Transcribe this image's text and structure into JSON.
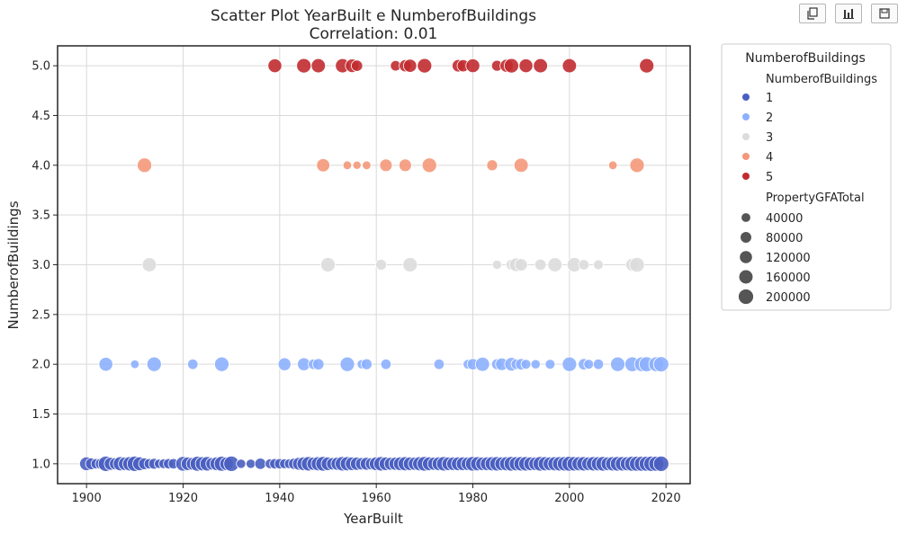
{
  "toolbar": {
    "buttons": [
      {
        "name": "copy-icon"
      },
      {
        "name": "bar-chart-icon"
      },
      {
        "name": "save-icon"
      }
    ]
  },
  "chart_data": {
    "type": "scatter",
    "title": "Scatter Plot YearBuilt e NumberofBuildings",
    "subtitle": "Correlation: 0.01",
    "xlabel": "YearBuilt",
    "ylabel": "NumberofBuildings",
    "xlim": [
      1894,
      2025
    ],
    "ylim": [
      0.8,
      5.2
    ],
    "xticks": [
      1900,
      1920,
      1940,
      1960,
      1980,
      2000,
      2020
    ],
    "yticks": [
      1.0,
      1.5,
      2.0,
      2.5,
      3.0,
      3.5,
      4.0,
      4.5,
      5.0
    ],
    "xtick_labels": [
      "1900",
      "1920",
      "1940",
      "1960",
      "1980",
      "2000",
      "2020"
    ],
    "ytick_labels": [
      "1.0",
      "1.5",
      "2.0",
      "2.5",
      "3.0",
      "3.5",
      "4.0",
      "4.5",
      "5.0"
    ],
    "grid": true,
    "legend": {
      "position": "outside-right",
      "title": "NumberofBuildings",
      "hue_title": "NumberofBuildings",
      "hue_entries": [
        {
          "label": "1",
          "color": "#4a5fc1"
        },
        {
          "label": "2",
          "color": "#8db0fe"
        },
        {
          "label": "3",
          "color": "#dddcdc"
        },
        {
          "label": "4",
          "color": "#f4987a"
        },
        {
          "label": "5",
          "color": "#c12b30"
        }
      ],
      "size_title": "PropertyGFATotal",
      "size_entries": [
        {
          "label": "40000",
          "value": 40000
        },
        {
          "label": "80000",
          "value": 80000
        },
        {
          "label": "120000",
          "value": 120000
        },
        {
          "label": "160000",
          "value": 160000
        },
        {
          "label": "200000",
          "value": 200000
        }
      ]
    },
    "series": [
      {
        "name": "5",
        "color": "#c12b30",
        "y": 5,
        "points": [
          [
            1939,
            150000
          ],
          [
            1945,
            170000
          ],
          [
            1948,
            160000
          ],
          [
            1953,
            160000
          ],
          [
            1955,
            140000
          ],
          [
            1956,
            80000
          ],
          [
            1964,
            60000
          ],
          [
            1966,
            100000
          ],
          [
            1967,
            130000
          ],
          [
            1970,
            170000
          ],
          [
            1977,
            110000
          ],
          [
            1978,
            100000
          ],
          [
            1980,
            150000
          ],
          [
            1985,
            70000
          ],
          [
            1987,
            130000
          ],
          [
            1988,
            170000
          ],
          [
            1991,
            150000
          ],
          [
            1994,
            160000
          ],
          [
            2000,
            160000
          ],
          [
            2016,
            170000
          ]
        ]
      },
      {
        "name": "4",
        "color": "#f4987a",
        "y": 4,
        "points": [
          [
            1912,
            170000
          ],
          [
            1949,
            130000
          ],
          [
            1954,
            30000
          ],
          [
            1956,
            25000
          ],
          [
            1958,
            30000
          ],
          [
            1962,
            110000
          ],
          [
            1966,
            110000
          ],
          [
            1971,
            170000
          ],
          [
            1984,
            70000
          ],
          [
            1990,
            160000
          ],
          [
            2009,
            30000
          ],
          [
            2014,
            170000
          ]
        ]
      },
      {
        "name": "3",
        "color": "#dddcdc",
        "y": 3,
        "points": [
          [
            1913,
            160000
          ],
          [
            1950,
            170000
          ],
          [
            1961,
            70000
          ],
          [
            1967,
            170000
          ],
          [
            1985,
            40000
          ],
          [
            1988,
            70000
          ],
          [
            1989,
            150000
          ],
          [
            1990,
            110000
          ],
          [
            1994,
            80000
          ],
          [
            1997,
            160000
          ],
          [
            2001,
            170000
          ],
          [
            2003,
            60000
          ],
          [
            2006,
            50000
          ],
          [
            2013,
            120000
          ],
          [
            2014,
            180000
          ]
        ]
      },
      {
        "name": "2",
        "color": "#8db0fe",
        "y": 2,
        "points": [
          [
            1904,
            150000
          ],
          [
            1910,
            30000
          ],
          [
            1914,
            170000
          ],
          [
            1922,
            60000
          ],
          [
            1928,
            170000
          ],
          [
            1941,
            120000
          ],
          [
            1945,
            120000
          ],
          [
            1947,
            60000
          ],
          [
            1948,
            80000
          ],
          [
            1954,
            170000
          ],
          [
            1957,
            40000
          ],
          [
            1958,
            70000
          ],
          [
            1962,
            60000
          ],
          [
            1973,
            60000
          ],
          [
            1979,
            50000
          ],
          [
            1980,
            80000
          ],
          [
            1982,
            160000
          ],
          [
            1985,
            70000
          ],
          [
            1986,
            110000
          ],
          [
            1988,
            140000
          ],
          [
            1989,
            60000
          ],
          [
            1990,
            80000
          ],
          [
            1991,
            50000
          ],
          [
            1993,
            40000
          ],
          [
            1996,
            50000
          ],
          [
            2000,
            170000
          ],
          [
            2003,
            80000
          ],
          [
            2004,
            50000
          ],
          [
            2006,
            60000
          ],
          [
            2010,
            170000
          ],
          [
            2013,
            180000
          ],
          [
            2015,
            180000
          ],
          [
            2016,
            190000
          ],
          [
            2018,
            190000
          ],
          [
            2019,
            200000
          ]
        ]
      },
      {
        "name": "1",
        "color": "#4a5fc1",
        "y": 1,
        "points": [
          [
            1900,
            150000
          ],
          [
            1901,
            90000
          ],
          [
            1902,
            60000
          ],
          [
            1903,
            80000
          ],
          [
            1904,
            200000
          ],
          [
            1905,
            120000
          ],
          [
            1906,
            100000
          ],
          [
            1907,
            160000
          ],
          [
            1908,
            140000
          ],
          [
            1909,
            170000
          ],
          [
            1910,
            200000
          ],
          [
            1911,
            150000
          ],
          [
            1912,
            90000
          ],
          [
            1913,
            60000
          ],
          [
            1914,
            70000
          ],
          [
            1915,
            40000
          ],
          [
            1916,
            50000
          ],
          [
            1917,
            60000
          ],
          [
            1918,
            60000
          ],
          [
            1920,
            180000
          ],
          [
            1921,
            140000
          ],
          [
            1922,
            120000
          ],
          [
            1923,
            190000
          ],
          [
            1924,
            160000
          ],
          [
            1925,
            170000
          ],
          [
            1926,
            110000
          ],
          [
            1927,
            150000
          ],
          [
            1928,
            190000
          ],
          [
            1929,
            140000
          ],
          [
            1930,
            200000
          ],
          [
            1932,
            40000
          ],
          [
            1934,
            40000
          ],
          [
            1936,
            80000
          ],
          [
            1938,
            50000
          ],
          [
            1939,
            60000
          ],
          [
            1940,
            60000
          ],
          [
            1941,
            50000
          ],
          [
            1942,
            50000
          ],
          [
            1943,
            80000
          ],
          [
            1944,
            120000
          ],
          [
            1945,
            150000
          ],
          [
            1946,
            170000
          ],
          [
            1947,
            130000
          ],
          [
            1948,
            160000
          ],
          [
            1949,
            180000
          ],
          [
            1950,
            140000
          ],
          [
            1951,
            110000
          ],
          [
            1952,
            130000
          ],
          [
            1953,
            170000
          ],
          [
            1954,
            160000
          ],
          [
            1955,
            140000
          ],
          [
            1956,
            130000
          ],
          [
            1957,
            110000
          ],
          [
            1958,
            120000
          ],
          [
            1959,
            100000
          ],
          [
            1960,
            150000
          ],
          [
            1961,
            170000
          ],
          [
            1962,
            140000
          ],
          [
            1963,
            120000
          ],
          [
            1964,
            130000
          ],
          [
            1965,
            150000
          ],
          [
            1966,
            160000
          ],
          [
            1967,
            140000
          ],
          [
            1968,
            130000
          ],
          [
            1969,
            160000
          ],
          [
            1970,
            180000
          ],
          [
            1971,
            150000
          ],
          [
            1972,
            130000
          ],
          [
            1973,
            150000
          ],
          [
            1974,
            170000
          ],
          [
            1975,
            140000
          ],
          [
            1976,
            140000
          ],
          [
            1977,
            150000
          ],
          [
            1978,
            150000
          ],
          [
            1979,
            140000
          ],
          [
            1980,
            180000
          ],
          [
            1981,
            160000
          ],
          [
            1982,
            140000
          ],
          [
            1983,
            150000
          ],
          [
            1984,
            160000
          ],
          [
            1985,
            170000
          ],
          [
            1986,
            150000
          ],
          [
            1987,
            160000
          ],
          [
            1988,
            180000
          ],
          [
            1989,
            160000
          ],
          [
            1990,
            170000
          ],
          [
            1991,
            170000
          ],
          [
            1992,
            150000
          ],
          [
            1993,
            140000
          ],
          [
            1994,
            180000
          ],
          [
            1995,
            160000
          ],
          [
            1996,
            150000
          ],
          [
            1997,
            160000
          ],
          [
            1998,
            170000
          ],
          [
            1999,
            170000
          ],
          [
            2000,
            190000
          ],
          [
            2001,
            170000
          ],
          [
            2002,
            160000
          ],
          [
            2003,
            170000
          ],
          [
            2004,
            150000
          ],
          [
            2005,
            170000
          ],
          [
            2006,
            160000
          ],
          [
            2007,
            180000
          ],
          [
            2008,
            150000
          ],
          [
            2009,
            170000
          ],
          [
            2010,
            180000
          ],
          [
            2011,
            170000
          ],
          [
            2012,
            160000
          ],
          [
            2013,
            190000
          ],
          [
            2014,
            190000
          ],
          [
            2015,
            190000
          ],
          [
            2016,
            190000
          ],
          [
            2017,
            200000
          ],
          [
            2018,
            190000
          ],
          [
            2019,
            200000
          ]
        ]
      }
    ]
  }
}
